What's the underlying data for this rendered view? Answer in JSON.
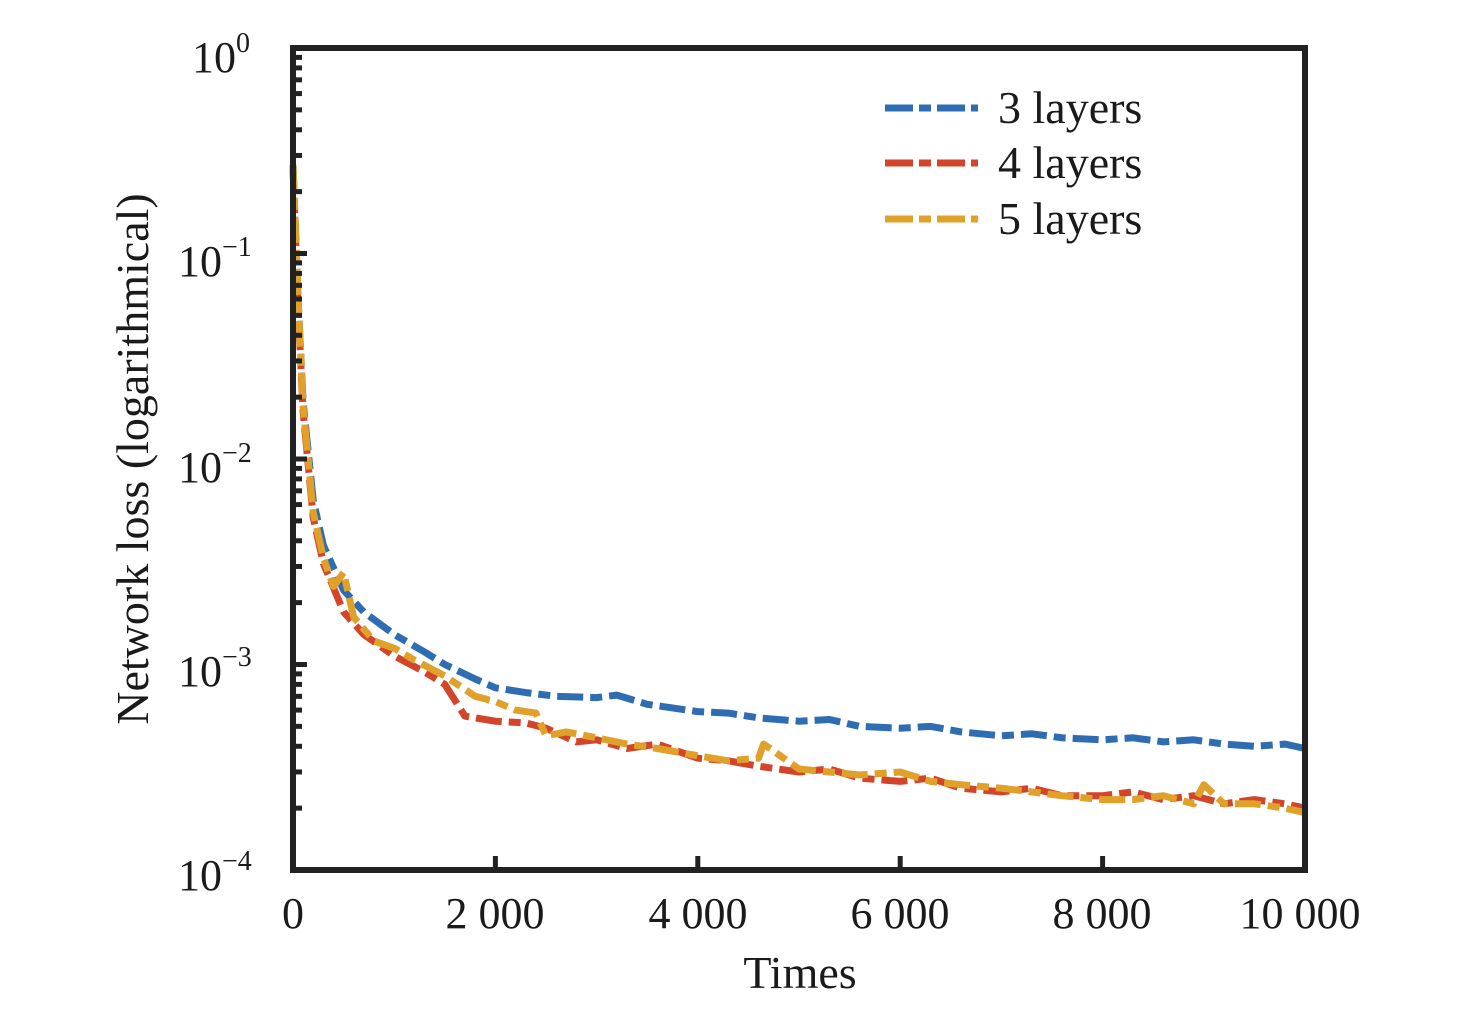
{
  "chart_data": {
    "type": "line",
    "title": "",
    "xlabel": "Times",
    "ylabel": "Network loss (logarithmical)",
    "xlim": [
      0,
      10000
    ],
    "ylim": [
      0.0001,
      1
    ],
    "yscale": "log",
    "grid": false,
    "legend_position": "top-right",
    "x_ticks": [
      0,
      2000,
      4000,
      6000,
      8000,
      10000
    ],
    "x_tick_labels": [
      "0",
      "2 000",
      "4 000",
      "6 000",
      "8 000",
      "10 000"
    ],
    "y_ticks": [
      1,
      0.1,
      0.01,
      0.001,
      0.0001
    ],
    "y_tick_labels": [
      {
        "base": "10",
        "exp": "0"
      },
      {
        "base": "10",
        "exp": "−1"
      },
      {
        "base": "10",
        "exp": "−2"
      },
      {
        "base": "10",
        "exp": "−3"
      },
      {
        "base": "10",
        "exp": "−4"
      }
    ],
    "series": [
      {
        "name": "3 layers",
        "color": "#2f6db3",
        "x": [
          0,
          50,
          100,
          200,
          300,
          500,
          700,
          1000,
          1300,
          1500,
          1800,
          2000,
          2300,
          2600,
          3000,
          3200,
          3500,
          4000,
          4300,
          4600,
          5000,
          5300,
          5600,
          6000,
          6300,
          6600,
          7000,
          7300,
          7600,
          8000,
          8300,
          8600,
          8900,
          9200,
          9500,
          9800,
          10000
        ],
        "y": [
          0.27,
          0.06,
          0.019,
          0.0063,
          0.0038,
          0.0023,
          0.0018,
          0.0014,
          0.00115,
          0.001,
          0.00085,
          0.00077,
          0.00073,
          0.0007,
          0.00069,
          0.00071,
          0.00064,
          0.00059,
          0.00058,
          0.00055,
          0.00053,
          0.00054,
          0.0005,
          0.00049,
          0.0005,
          0.00047,
          0.00045,
          0.00046,
          0.00044,
          0.00043,
          0.00044,
          0.00042,
          0.00043,
          0.00041,
          0.0004,
          0.00041,
          0.00039
        ]
      },
      {
        "name": "4 layers",
        "color": "#d2452a",
        "x": [
          0,
          50,
          100,
          200,
          300,
          500,
          700,
          1000,
          1300,
          1500,
          1700,
          2000,
          2300,
          2500,
          2800,
          3000,
          3300,
          3600,
          4000,
          4300,
          4600,
          5000,
          5300,
          5600,
          6000,
          6300,
          6600,
          7000,
          7300,
          7600,
          8000,
          8300,
          8600,
          8900,
          9200,
          9500,
          9800,
          10000
        ],
        "y": [
          0.26,
          0.055,
          0.017,
          0.0052,
          0.0031,
          0.0018,
          0.0014,
          0.0011,
          0.00092,
          0.0008,
          0.00056,
          0.00053,
          0.00052,
          0.00049,
          0.00042,
          0.00043,
          0.00039,
          0.00041,
          0.00035,
          0.00034,
          0.00032,
          0.0003,
          0.00031,
          0.00028,
          0.00027,
          0.00028,
          0.00025,
          0.00024,
          0.00025,
          0.00023,
          0.00023,
          0.00024,
          0.00022,
          0.00023,
          0.00021,
          0.00022,
          0.00021,
          0.0002
        ]
      },
      {
        "name": "5 layers",
        "color": "#e0a12b",
        "x": [
          0,
          50,
          100,
          200,
          300,
          400,
          500,
          600,
          800,
          1000,
          1200,
          1500,
          1800,
          2000,
          2200,
          2400,
          2500,
          2700,
          3000,
          3300,
          3600,
          4000,
          4300,
          4600,
          4650,
          5000,
          5300,
          5600,
          6000,
          6300,
          6600,
          7000,
          7300,
          7600,
          8000,
          8300,
          8600,
          8900,
          9000,
          9200,
          9500,
          9800,
          10000
        ],
        "y": [
          0.27,
          0.06,
          0.018,
          0.0055,
          0.0033,
          0.0024,
          0.0028,
          0.0017,
          0.0013,
          0.0012,
          0.00105,
          0.00088,
          0.0007,
          0.00066,
          0.0006,
          0.00058,
          0.00045,
          0.00047,
          0.00044,
          0.00041,
          0.00039,
          0.00036,
          0.00034,
          0.00035,
          0.00041,
          0.00031,
          0.0003,
          0.00029,
          0.0003,
          0.00027,
          0.00026,
          0.00025,
          0.00024,
          0.00023,
          0.00022,
          0.00022,
          0.00023,
          0.00021,
          0.00026,
          0.00021,
          0.00021,
          0.0002,
          0.00019
        ]
      }
    ]
  }
}
